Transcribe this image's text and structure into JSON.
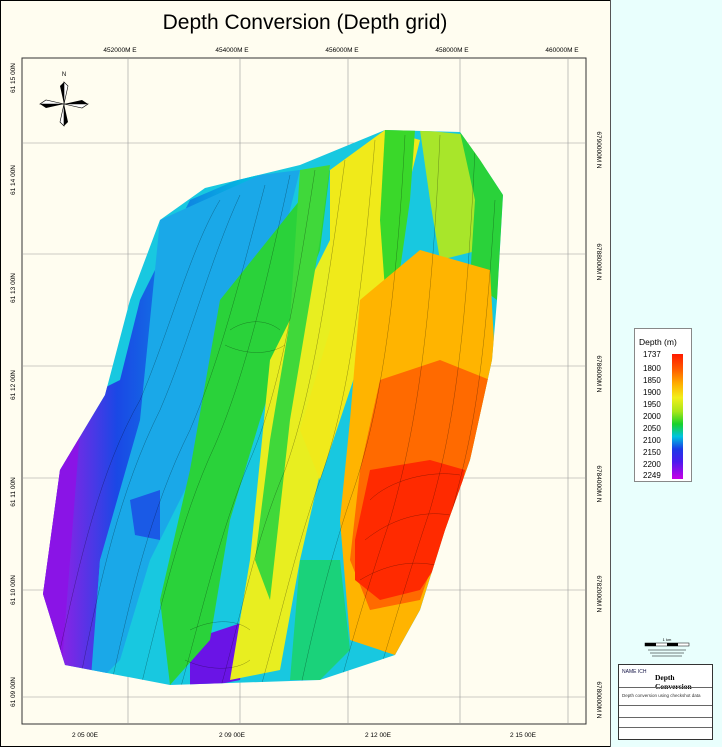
{
  "title": "Depth Conversion (Depth grid)",
  "axes": {
    "top_ticks": [
      "452000M E",
      "454000M E",
      "456000M E",
      "458000M E",
      "460000M E"
    ],
    "bottom_ticks": [
      "2 05 00E",
      "2 09 00E",
      "2 12 00E",
      "2 15 00E"
    ],
    "left_ticks": [
      "61 15 00N",
      "61 14 00N",
      "61 13 00N",
      "61 12 00N",
      "61 11 00N",
      "61 10 00N",
      "61 09 00N"
    ],
    "right_ticks": [
      "6790000M N",
      "6788000M N",
      "6786000M N",
      "6784000M N",
      "6782000M N",
      "6780000M N"
    ]
  },
  "north_label": "N",
  "legend": {
    "title": "Depth (m)",
    "labels": [
      "1737",
      "1800",
      "1850",
      "1900",
      "1950",
      "2000",
      "2050",
      "2100",
      "2150",
      "2200",
      "2249"
    ],
    "colors": [
      "#ff1a00",
      "#ff5a00",
      "#ffb000",
      "#f2ef1a",
      "#a8e61a",
      "#18d22a",
      "#00c4e0",
      "#1a3ae6",
      "#4a1aee",
      "#c800e6"
    ]
  },
  "scale_bar": {
    "label": "1 km"
  },
  "title_block": {
    "logo": "NAME ICH",
    "title": "Depth Conversion",
    "subtitle": "Depth conversion using checkshot data"
  },
  "colors": {
    "background": "#fffdf0",
    "side_panel": "#e9fffd",
    "grid_lines": "#9a9a9a"
  }
}
